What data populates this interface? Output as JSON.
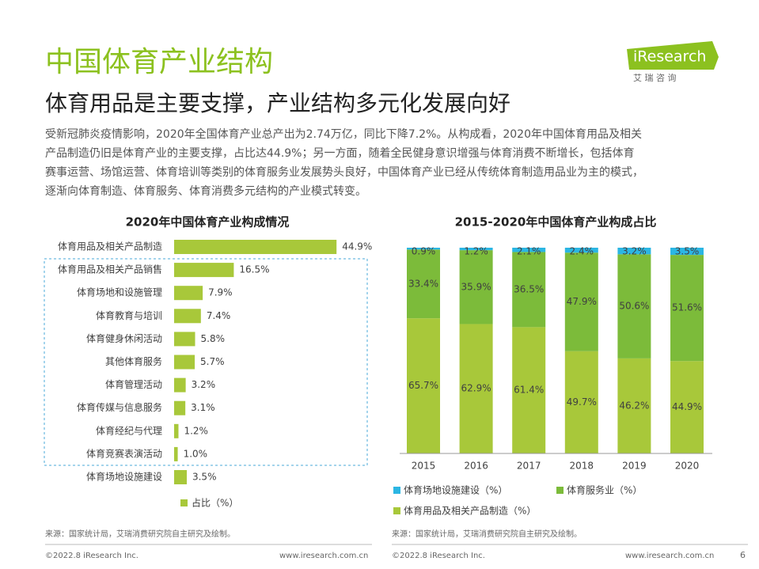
{
  "header": {
    "title": "中国体育产业结构",
    "subtitle": "体育用品是主要支撑，产业结构多元化发展向好",
    "logo": "iResearch",
    "logo_cn": "艾 瑞 咨 询",
    "paragraph": [
      "受新冠肺炎疫情影响，2020年全国体育产业总产出为2.74万亿，同比下降7.2%。从构成看，2020年中国体育用品及相关",
      "产品制造仍旧是体育产业的主要支撑，占比达44.9%；另一方面，随着全民健身意识增强与体育消费不断增长，包括体育",
      "赛事运营、场馆运营、体育培训等类别的体育服务业发展势头良好，中国体育产业已经从传统体育制造用品业为主的模式，",
      "逐渐向体育制造、体育服务、体育消费多元结构的产业模式转变。"
    ]
  },
  "chart_data": [
    {
      "type": "hbar",
      "title": "2020年中国体育产业构成情况",
      "categories": [
        "体育用品及相关产品制造",
        "体育用品及相关产品销售",
        "体育场地和设施管理",
        "体育教育与培训",
        "体育健身休闲活动",
        "其他体育服务",
        "体育管理活动",
        "体育传媒与信息服务",
        "体育经纪与代理",
        "体育竞赛表演活动",
        "体育场地设施建设"
      ],
      "series": [
        {
          "name": "占比（%）",
          "color": "#a8c83a",
          "values": [
            44.9,
            16.5,
            7.9,
            7.4,
            5.8,
            5.7,
            3.2,
            3.1,
            1.2,
            1.0,
            3.5
          ],
          "value_labels": [
            "44.9%",
            "16.5%",
            "7.9%",
            "7.4%",
            "5.8%",
            "5.7%",
            "3.2%",
            "3.1%",
            "1.2%",
            "1.0%",
            "3.5%"
          ]
        }
      ],
      "source": "来源：国家统计局，艾瑞消费研究院自主研究及绘制。"
    },
    {
      "type": "stacked_bar",
      "title": "2015-2020年中国体育产业构成占比",
      "categories": [
        "2015",
        "2016",
        "2017",
        "2018",
        "2019",
        "2020"
      ],
      "ylim": [
        0,
        100
      ],
      "series": [
        {
          "name": "体育用品及相关产品制造（%）",
          "color": "#a8c83a",
          "values": [
            65.7,
            62.9,
            61.4,
            49.7,
            46.2,
            44.9
          ],
          "value_labels": [
            "65.7%",
            "62.9%",
            "61.4%",
            "49.7%",
            "46.2%",
            "44.9%"
          ]
        },
        {
          "name": "体育服务业（%）",
          "color": "#7cbb3a",
          "values": [
            33.4,
            35.9,
            36.5,
            47.9,
            50.6,
            51.6
          ],
          "value_labels": [
            "33.4%",
            "35.9%",
            "36.5%",
            "47.9%",
            "50.6%",
            "51.6%"
          ]
        },
        {
          "name": "体育场地设施建设（%）",
          "color": "#2bb6e3",
          "values": [
            0.9,
            1.2,
            2.1,
            2.4,
            3.2,
            3.5
          ],
          "value_labels": [
            "0.9%",
            "1.2%",
            "2.1%",
            "2.4%",
            "3.2%",
            "3.5%"
          ]
        }
      ],
      "source": "来源：国家统计局，艾瑞消费研究院自主研究及绘制。"
    }
  ],
  "footer": {
    "copyright": "©2022.8 iResearch Inc.",
    "url": "www.iresearch.com.cn",
    "page": "6"
  }
}
